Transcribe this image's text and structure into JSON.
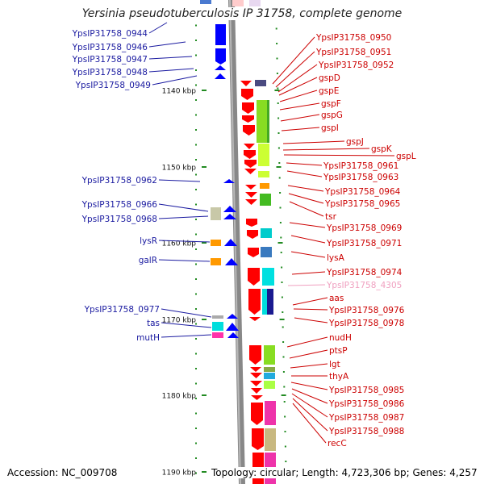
{
  "title": "Yersinia pseudotuberculosis IP 31758, complete genome",
  "accession_text": "Accession: NC_009708",
  "topology_text": "Topology: circular; Length: 4,723,306 bp; Genes: 4,257",
  "colors": {
    "left_label": "#1a1aa0",
    "right_label": "#cc0000",
    "dim_label": "#f0a0c0",
    "backbone": "#888888",
    "tick": "#228b22",
    "reverse_arrow": "#ff0000",
    "forward_arrow": "#0000ff"
  },
  "scale": {
    "ticks": [
      {
        "label": "1140 kbp"
      },
      {
        "label": "1150 kbp"
      },
      {
        "label": "1160 kbp"
      },
      {
        "label": "1170 kbp"
      },
      {
        "label": "1180 kbp"
      },
      {
        "label": "1190 kbp"
      }
    ]
  },
  "left_labels": [
    {
      "text": "YpsIP31758_0944"
    },
    {
      "text": "YpsIP31758_0946"
    },
    {
      "text": "YpsIP31758_0947"
    },
    {
      "text": "YpsIP31758_0948"
    },
    {
      "text": "YpsIP31758_0949"
    },
    {
      "text": "YpsIP31758_0962"
    },
    {
      "text": "YpsIP31758_0966"
    },
    {
      "text": "YpsIP31758_0968"
    },
    {
      "text": "lysR"
    },
    {
      "text": "galR"
    },
    {
      "text": "YpsIP31758_0977"
    },
    {
      "text": "tas"
    },
    {
      "text": "mutH"
    }
  ],
  "right_labels": [
    {
      "text": "YpsIP31758_0950"
    },
    {
      "text": "YpsIP31758_0951"
    },
    {
      "text": "YpsIP31758_0952"
    },
    {
      "text": "gspD"
    },
    {
      "text": "gspE"
    },
    {
      "text": "gspF"
    },
    {
      "text": "gspG"
    },
    {
      "text": "gspI"
    },
    {
      "text": "gspJ"
    },
    {
      "text": "gspK"
    },
    {
      "text": "gspL"
    },
    {
      "text": "YpsIP31758_0961"
    },
    {
      "text": "YpsIP31758_0963"
    },
    {
      "text": "YpsIP31758_0964"
    },
    {
      "text": "YpsIP31758_0965"
    },
    {
      "text": "tsr"
    },
    {
      "text": "YpsIP31758_0969"
    },
    {
      "text": "YpsIP31758_0971"
    },
    {
      "text": "lysA"
    },
    {
      "text": "YpsIP31758_0974"
    },
    {
      "text": "YpsIP31758_4305"
    },
    {
      "text": "aas"
    },
    {
      "text": "YpsIP31758_0976"
    },
    {
      "text": "YpsIP31758_0978"
    },
    {
      "text": "nudH"
    },
    {
      "text": "ptsP"
    },
    {
      "text": "lgt"
    },
    {
      "text": "thyA"
    },
    {
      "text": "YpsIP31758_0985"
    },
    {
      "text": "YpsIP31758_0986"
    },
    {
      "text": "YpsIP31758_0987"
    },
    {
      "text": "YpsIP31758_0988"
    },
    {
      "text": "recC"
    }
  ]
}
